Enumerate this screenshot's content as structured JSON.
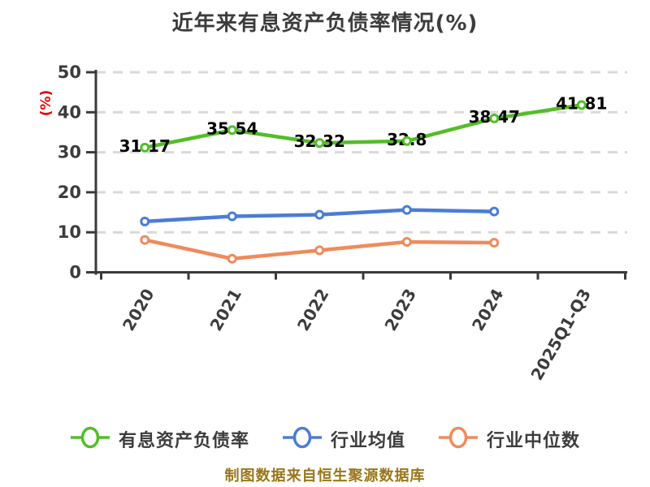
{
  "title": "近年来有息资产负债率情况(%)",
  "footer": {
    "source_note": "制图数据来自恒生聚源数据库"
  },
  "colors": {
    "background": "#ffffff",
    "title_text": "#3c3c3c",
    "axis": "#3a3a3a",
    "tick_label": "#3c3c3c",
    "gridline": "#d9d9d9",
    "data_label": "#000000",
    "y_unit_label": "#e60000",
    "footer_text": "#9a761b",
    "marker_fill": "#ffffff"
  },
  "chart_data": {
    "type": "line",
    "title": "近年来有息资产负债率情况(%)",
    "ylabel": "(%)",
    "ylabel_color": "#e60000",
    "xlabel": "",
    "ylim": [
      0,
      50
    ],
    "yticks": [
      0,
      10,
      20,
      30,
      40,
      50
    ],
    "grid": "dashed-horizontal",
    "legend_position": "bottom",
    "categories": [
      "2020",
      "2021",
      "2022",
      "2023",
      "2024",
      "2025Q1-Q3"
    ],
    "series": [
      {
        "name": "有息资产负债率",
        "color": "#53bd28",
        "values": [
          31.17,
          35.54,
          32.32,
          32.8,
          38.47,
          41.81
        ],
        "point_labels": [
          "31.17",
          "35.54",
          "32.32",
          "32.8",
          "38.47",
          "41.81"
        ]
      },
      {
        "name": "行业均值",
        "color": "#4b7cd6",
        "values": [
          12.7,
          14.0,
          14.4,
          15.6,
          15.2
        ],
        "point_labels": []
      },
      {
        "name": "行业中位数",
        "color": "#f08a5c",
        "values": [
          8.1,
          3.4,
          5.5,
          7.6,
          7.4
        ],
        "point_labels": []
      }
    ]
  },
  "legend": {
    "items": [
      {
        "label": "有息资产负债率",
        "color": "#53bd28"
      },
      {
        "label": "行业均值",
        "color": "#4b7cd6"
      },
      {
        "label": "行业中位数",
        "color": "#f08a5c"
      }
    ]
  }
}
